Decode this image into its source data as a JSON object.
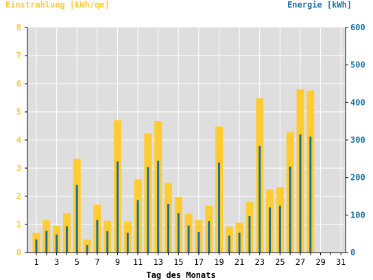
{
  "chart_data": {
    "type": "bar",
    "left_axis_label": "Einstrahlung [kWh/qm]",
    "right_axis_label": "Energie [kWh]",
    "xlabel": "Tag des Monats",
    "x_tick_labels": [
      "1",
      "3",
      "5",
      "7",
      "9",
      "11",
      "13",
      "15",
      "17",
      "19",
      "21",
      "23",
      "25",
      "27",
      "29",
      "31"
    ],
    "y_left_ticks": [
      "0",
      "1",
      "2",
      "3",
      "4",
      "5",
      "6",
      "7",
      "8"
    ],
    "y_right_ticks": [
      "0",
      "100",
      "200",
      "300",
      "400",
      "500",
      "600"
    ],
    "y_left_lim": [
      0,
      8
    ],
    "y_right_lim": [
      0,
      600
    ],
    "days": [
      1,
      2,
      3,
      4,
      5,
      6,
      7,
      8,
      9,
      10,
      11,
      12,
      13,
      14,
      15,
      16,
      17,
      18,
      19,
      20,
      21,
      22,
      23,
      24,
      25,
      26,
      27,
      28,
      29,
      30,
      31
    ],
    "series": [
      {
        "name": "Einstrahlung [kWh/qm]",
        "axis": "left",
        "color": "#ffcc33",
        "values": [
          0.7,
          1.15,
          0.95,
          1.4,
          3.33,
          0.47,
          1.7,
          1.13,
          4.7,
          1.1,
          2.6,
          4.23,
          4.68,
          2.48,
          1.98,
          1.38,
          1.15,
          1.66,
          4.48,
          0.92,
          1.06,
          1.8,
          5.48,
          2.24,
          2.32,
          4.28,
          5.8,
          5.75,
          null,
          null,
          null
        ]
      },
      {
        "name": "Energie [kWh]",
        "axis": "right",
        "color": "#1a6fa0",
        "values": [
          35,
          58,
          48,
          70,
          180,
          20,
          87,
          57,
          243,
          53,
          140,
          228,
          245,
          130,
          105,
          72,
          55,
          84,
          240,
          45,
          53,
          97,
          284,
          120,
          125,
          229,
          315,
          309,
          null,
          null,
          null
        ]
      }
    ],
    "colors": {
      "left_axis": "#ffcc33",
      "right_axis": "#1a6fa0",
      "plot_background": "#dedede",
      "grid": "#ffffff"
    },
    "grid": true,
    "legend": "none"
  }
}
